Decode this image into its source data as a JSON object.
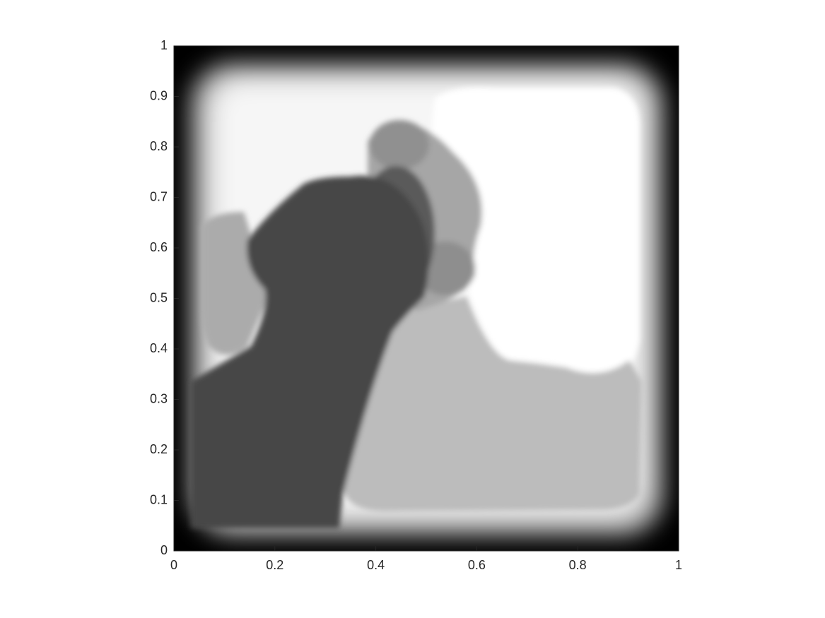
{
  "chart_data": {
    "type": "image",
    "xlim": [
      0,
      1
    ],
    "ylim": [
      0,
      1
    ],
    "xticks": [
      0,
      0.2,
      0.4,
      0.6,
      0.8,
      1
    ],
    "yticks": [
      0,
      0.1,
      0.2,
      0.3,
      0.4,
      0.5,
      0.6,
      0.7,
      0.8,
      0.9,
      1
    ]
  }
}
